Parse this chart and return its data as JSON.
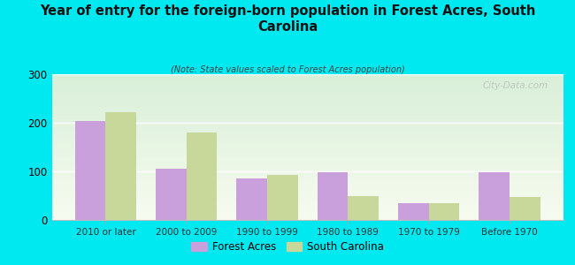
{
  "title": "Year of entry for the foreign-born population in Forest Acres, South\nCarolina",
  "subtitle": "(Note: State values scaled to Forest Acres population)",
  "categories": [
    "2010 or later",
    "2000 to 2009",
    "1990 to 1999",
    "1980 to 1989",
    "1970 to 1979",
    "Before 1970"
  ],
  "forest_acres": [
    203,
    105,
    85,
    98,
    35,
    99
  ],
  "south_carolina": [
    222,
    180,
    93,
    50,
    35,
    47
  ],
  "forest_acres_color": "#c9a0dc",
  "south_carolina_color": "#c8d89a",
  "bg_color": "#00e8f0",
  "ylim": [
    0,
    300
  ],
  "yticks": [
    0,
    100,
    200,
    300
  ],
  "bar_width": 0.38,
  "watermark": "City-Data.com",
  "legend_forest_acres": "Forest Acres",
  "legend_south_carolina": "South Carolina"
}
